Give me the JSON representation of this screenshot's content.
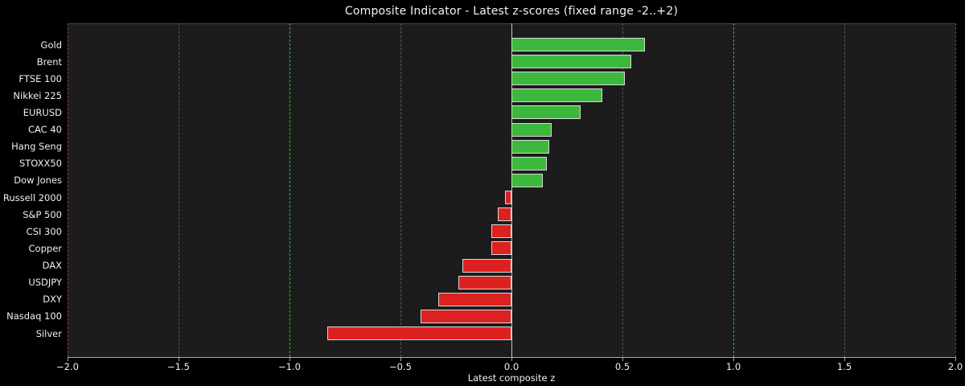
{
  "chart_data": {
    "type": "bar",
    "orientation": "horizontal",
    "title": "Composite Indicator - Latest z-scores (fixed range -2..+2)",
    "xlabel": "Latest composite z",
    "ylabel": "",
    "xlim": [
      -2.0,
      2.0
    ],
    "categories": [
      "Gold",
      "Brent",
      "FTSE 100",
      "Nikkei 225",
      "EURUSD",
      "CAC 40",
      "Hang Seng",
      "STOXX50",
      "Dow Jones",
      "Russell 2000",
      "S&P 500",
      "CSI 300",
      "Copper",
      "DAX",
      "USDJPY",
      "DXY",
      "Nasdaq 100",
      "Silver"
    ],
    "values": [
      0.6,
      0.54,
      0.51,
      0.41,
      0.31,
      0.18,
      0.17,
      0.16,
      0.14,
      -0.03,
      -0.06,
      -0.09,
      -0.09,
      -0.22,
      -0.24,
      -0.33,
      -0.41,
      -0.83
    ],
    "xticks": [
      -2.0,
      -1.5,
      -1.0,
      -0.5,
      0.0,
      0.5,
      1.0,
      1.5,
      2.0
    ],
    "xtick_labels": [
      "−2.0",
      "−1.5",
      "−1.0",
      "−0.5",
      "0.0",
      "0.5",
      "1.0",
      "1.5",
      "2.0"
    ],
    "grid": "vertical dashed gridlines at 0.5 intervals",
    "legend": "none",
    "colors": {
      "positive_bar": "#3cb83c",
      "negative_bar": "#dd2020",
      "bar_edge": "#d9d9d9",
      "threshold_line_inner": "#2ecc2e",
      "threshold_line_outer": "#9e3a35",
      "zero_line": "#c9c9c9",
      "gridline": "#5a5a5a",
      "plot_background": "#1c1c1c",
      "figure_background": "#000000",
      "text": "#f0f0f0"
    },
    "reference_lines": [
      {
        "x": -2.0,
        "style": "dashed",
        "color": "#9e3a35"
      },
      {
        "x": -1.0,
        "style": "dashed",
        "color": "#2ecc2e"
      },
      {
        "x": 0.0,
        "style": "solid",
        "color": "#c9c9c9"
      },
      {
        "x": 1.0,
        "style": "dashed",
        "color": "#2ecc2e"
      },
      {
        "x": 2.0,
        "style": "dashed",
        "color": "#9e3a35"
      }
    ]
  }
}
